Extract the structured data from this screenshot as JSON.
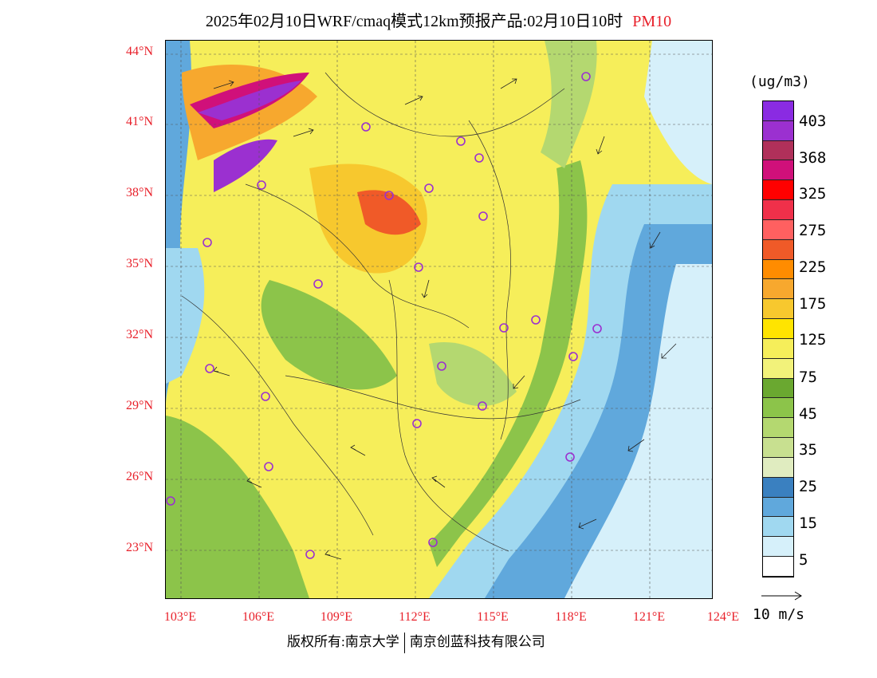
{
  "title": {
    "main": "2025年02月10日WRF/cmaq模式12km预报产品:02月10日10时",
    "variable": "PM10"
  },
  "axes": {
    "lat_labels": [
      "44°N",
      "41°N",
      "38°N",
      "35°N",
      "32°N",
      "29°N",
      "26°N",
      "23°N"
    ],
    "lon_labels": [
      "103°E",
      "106°E",
      "109°E",
      "112°E",
      "115°E",
      "118°E",
      "121°E",
      "124°E"
    ]
  },
  "legend": {
    "unit": "(ug/m3)",
    "ticks": [
      "403",
      "368",
      "325",
      "275",
      "225",
      "175",
      "125",
      "75",
      "45",
      "35",
      "25",
      "15",
      "5"
    ],
    "colors": [
      "#8a2be2",
      "#9b30d0",
      "#b0305a",
      "#d0107a",
      "#ff0000",
      "#f0304a",
      "#ff6060",
      "#f05a28",
      "#ff8c00",
      "#f7a82e",
      "#f7c82e",
      "#ffe400",
      "#f6ee5a",
      "#f2f27a",
      "#6aa830",
      "#8cc44a",
      "#b4d870",
      "#c8e090",
      "#e0ecc0",
      "#3a80c0",
      "#60a8dc",
      "#a0d8f0",
      "#d6f0fa",
      "#ffffff"
    ]
  },
  "scale": {
    "label": "10 m/s"
  },
  "footer": {
    "left": "版权所有:南京大学",
    "right": "南京创蓝科技有限公司"
  },
  "colors": {
    "axis_label": "#e8202a",
    "site_marker": "#9b30d0"
  }
}
